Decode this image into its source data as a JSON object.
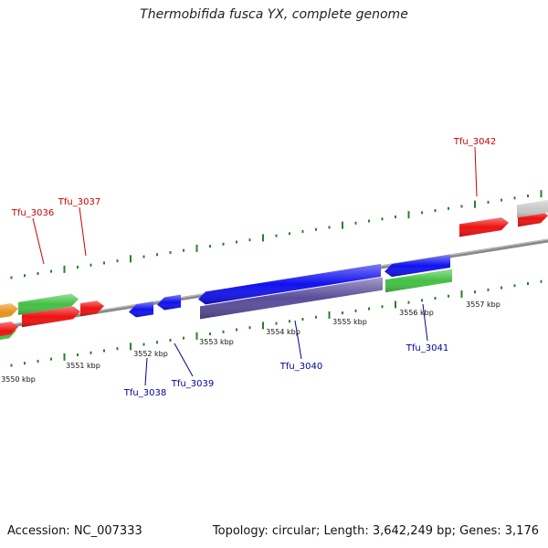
{
  "title": "Thermobifida fusca YX, complete genome",
  "footer": {
    "accession": "Accession: NC_007333",
    "stats": "Topology: circular; Length: 3,642,249 bp; Genes: 3,176"
  },
  "colors": {
    "forward_label": "#cc0000",
    "reverse_label": "#000099",
    "tick": "#2e7d2e",
    "backbone": "#8a8a8a"
  },
  "scale_labels": [
    "3550 kbp",
    "3551 kbp",
    "3552 kbp",
    "3553 kbp",
    "3554 kbp",
    "3555 kbp",
    "3556 kbp",
    "3557 kbp"
  ],
  "gene_labels": [
    {
      "name": "Tfu_3036",
      "strand": "forward"
    },
    {
      "name": "Tfu_3037",
      "strand": "forward"
    },
    {
      "name": "Tfu_3042",
      "strand": "forward"
    },
    {
      "name": "Tfu_3038",
      "strand": "reverse"
    },
    {
      "name": "Tfu_3039",
      "strand": "reverse"
    },
    {
      "name": "Tfu_3040",
      "strand": "reverse"
    },
    {
      "name": "Tfu_3041",
      "strand": "reverse"
    }
  ],
  "features": [
    {
      "track": "forward-outer",
      "color": "#e8901a"
    },
    {
      "track": "forward-outer",
      "color": "#44c044"
    },
    {
      "track": "forward-outer",
      "color": "#44c044"
    },
    {
      "track": "forward-inner",
      "color": "#ee1111"
    },
    {
      "track": "forward-inner",
      "color": "#ee1111"
    },
    {
      "track": "forward-inner",
      "color": "#ee1111"
    },
    {
      "track": "forward-inner",
      "color": "#ee1111"
    },
    {
      "track": "forward-inner",
      "color": "#ee1111"
    },
    {
      "track": "forward-outer",
      "color": "#c8c8c8"
    },
    {
      "track": "reverse-inner",
      "color": "#1111ee"
    },
    {
      "track": "reverse-inner",
      "color": "#1111ee"
    },
    {
      "track": "reverse-inner",
      "color": "#1111ee"
    },
    {
      "track": "reverse-inner",
      "color": "#1111ee"
    },
    {
      "track": "reverse-outer",
      "color": "#5a4c9a"
    },
    {
      "track": "reverse-outer",
      "color": "#44c044"
    }
  ]
}
